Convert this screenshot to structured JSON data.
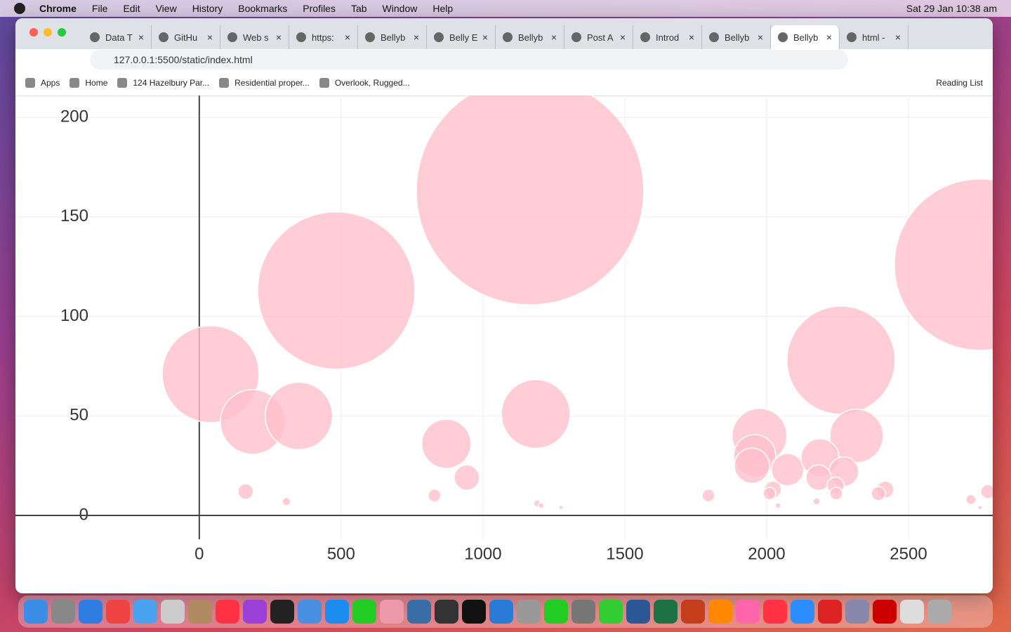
{
  "menubar": {
    "app": "Chrome",
    "menus": [
      "File",
      "Edit",
      "View",
      "History",
      "Bookmarks",
      "Profiles",
      "Tab",
      "Window",
      "Help"
    ],
    "clock": "Sat 29 Jan  10:38 am"
  },
  "tabs": [
    "Data T",
    "GitHu",
    "Web s",
    "https:",
    "Bellyb",
    "Belly E",
    "Bellyb",
    "Post A",
    "Introd",
    "Bellyb",
    "Bellyb",
    "html -"
  ],
  "address": "127.0.0.1:5500/static/index.html",
  "bookmarks": [
    "Apps",
    "Home",
    "124 Hazelbury Par...",
    "Residential proper...",
    "Overlook, Rugged..."
  ],
  "reading_list": "Reading List",
  "chart_data": {
    "type": "bubble",
    "xlim": [
      -648,
      2797
    ],
    "ylim": [
      -12,
      211
    ],
    "xticks": [
      0,
      500,
      1000,
      1500,
      2000,
      2500
    ],
    "yticks": [
      0,
      50,
      100,
      150,
      200
    ],
    "grid": true,
    "series": [
      {
        "color": "#ffc0cb",
        "x": [
          40,
          188,
          351,
          483,
          163,
          307,
          871,
          943,
          829,
          1166,
          1186,
          1191,
          1205,
          1275,
          1795,
          1975,
          1958,
          1948,
          2074,
          2022,
          2010,
          2262,
          2317,
          2188,
          2272,
          2183,
          2243,
          2245,
          2418,
          2394,
          2176,
          2752,
          2780,
          2720,
          2040,
          2752
        ],
        "values": [
          71,
          47,
          50,
          113,
          12,
          7,
          36,
          19,
          10,
          163,
          51,
          6,
          5,
          4,
          10,
          40,
          30,
          25,
          23,
          13,
          11,
          78,
          40,
          29,
          22,
          19,
          15,
          11,
          13,
          11,
          7,
          126,
          12,
          8,
          5,
          4
        ],
        "sizes": [
          138,
          92,
          96,
          224,
          22,
          12,
          70,
          36,
          18,
          324,
          98,
          10,
          8,
          6,
          18,
          78,
          60,
          50,
          46,
          24,
          18,
          154,
          76,
          54,
          42,
          36,
          24,
          18,
          24,
          20,
          10,
          244,
          20,
          14,
          8,
          6
        ]
      }
    ]
  }
}
